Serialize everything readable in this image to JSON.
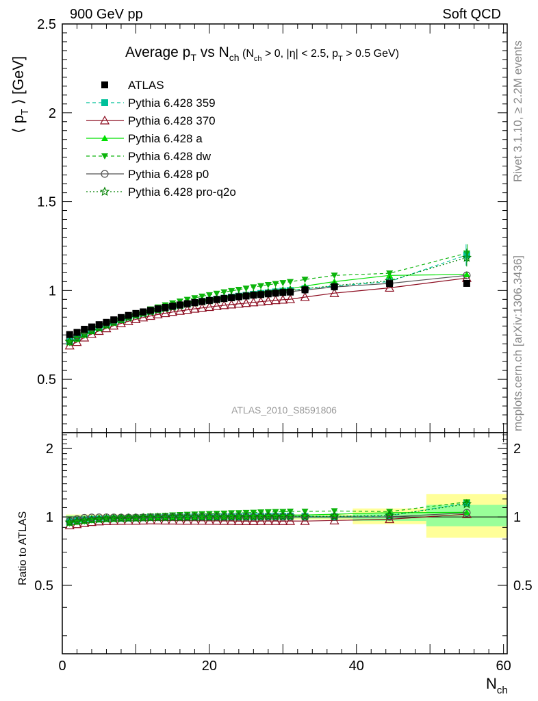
{
  "header": {
    "left": "900 GeV pp",
    "right": "Soft QCD"
  },
  "side_labels": {
    "rivet": "Rivet 3.1.10, ≥ 2.2M events",
    "source": "mcplots.cern.ch [arXiv:1306.3436]"
  },
  "chart_data": {
    "type": "scatter",
    "title_main": "Average p",
    "title_main_sub": "T",
    "title_vs": " vs N",
    "title_vs_sub": "ch",
    "title_cuts_1": " (N",
    "title_cuts_1_sub": "ch",
    "title_cuts_2": " > 0, |η| < 2.5, p",
    "title_cuts_2_sub": "T",
    "title_cuts_3": " > 0.5 GeV)",
    "analysis_label": "ATLAS_2010_S8591806",
    "ylabel_pre": "⟨ p",
    "ylabel_sub": "T",
    "ylabel_post": " ⟩ [GeV]",
    "ratio_ylabel": "Ratio to ATLAS",
    "xlabel": "N",
    "xlabel_sub": "ch",
    "xlim": [
      0,
      60.5
    ],
    "ylim": [
      0.2,
      2.5
    ],
    "ratio_ylim": [
      0.25,
      2.35
    ],
    "x_ticks": [
      "0",
      "20",
      "40",
      "60"
    ],
    "y_ticks": [
      "0.5",
      "1",
      "1.5",
      "2",
      "2.5"
    ],
    "ratio_y_ticks": [
      "0.5",
      "1",
      "2"
    ],
    "x": [
      1,
      2,
      3,
      4,
      5,
      6,
      7,
      8,
      9,
      10,
      11,
      12,
      13,
      14,
      15,
      16,
      17,
      18,
      19,
      20,
      21,
      22,
      23,
      24,
      25,
      26,
      27,
      28,
      29,
      30,
      31,
      33,
      37,
      44.5,
      55
    ],
    "reference": {
      "name": "ATLAS",
      "color": "#000000",
      "values": [
        0.752,
        0.764,
        0.782,
        0.795,
        0.808,
        0.821,
        0.835,
        0.848,
        0.86,
        0.871,
        0.88,
        0.888,
        0.897,
        0.905,
        0.912,
        0.919,
        0.926,
        0.932,
        0.938,
        0.944,
        0.949,
        0.955,
        0.959,
        0.965,
        0.969,
        0.974,
        0.977,
        0.981,
        0.985,
        0.989,
        0.991,
        1.004,
        1.021,
        1.039,
        1.04
      ]
    },
    "series": [
      {
        "name": "Pythia 6.428 359",
        "color": "#00c09a",
        "dash": "5,4",
        "marker": "square",
        "values": [
          0.717,
          0.734,
          0.757,
          0.775,
          0.791,
          0.807,
          0.822,
          0.836,
          0.85,
          0.862,
          0.873,
          0.883,
          0.892,
          0.901,
          0.91,
          0.917,
          0.925,
          0.932,
          0.939,
          0.945,
          0.951,
          0.957,
          0.963,
          0.968,
          0.973,
          0.978,
          0.983,
          0.987,
          0.992,
          0.996,
          1.0,
          1.01,
          1.025,
          1.05,
          1.2
        ]
      },
      {
        "name": "Pythia 6.428 370",
        "color": "#8b0a1e",
        "dash": "",
        "marker": "triangle-open",
        "values": [
          0.69,
          0.71,
          0.735,
          0.755,
          0.772,
          0.787,
          0.802,
          0.815,
          0.827,
          0.838,
          0.848,
          0.857,
          0.865,
          0.872,
          0.879,
          0.885,
          0.891,
          0.897,
          0.902,
          0.907,
          0.912,
          0.917,
          0.921,
          0.925,
          0.929,
          0.933,
          0.937,
          0.941,
          0.945,
          0.948,
          0.951,
          0.963,
          0.985,
          1.015,
          1.07
        ]
      },
      {
        "name": "Pythia 6.428 a",
        "color": "#00e000",
        "dash": "",
        "marker": "triangle",
        "values": [
          0.708,
          0.727,
          0.75,
          0.77,
          0.787,
          0.803,
          0.818,
          0.833,
          0.847,
          0.859,
          0.871,
          0.881,
          0.891,
          0.901,
          0.91,
          0.918,
          0.926,
          0.933,
          0.941,
          0.948,
          0.954,
          0.961,
          0.967,
          0.973,
          0.978,
          0.984,
          0.989,
          0.995,
          1.0,
          1.005,
          1.01,
          1.025,
          1.05,
          1.085,
          1.09
        ]
      },
      {
        "name": "Pythia 6.428 dw",
        "color": "#0cb40c",
        "dash": "5,4",
        "marker": "triangle-down",
        "values": [
          0.705,
          0.725,
          0.748,
          0.769,
          0.788,
          0.806,
          0.823,
          0.839,
          0.854,
          0.868,
          0.882,
          0.895,
          0.906,
          0.918,
          0.929,
          0.939,
          0.949,
          0.958,
          0.967,
          0.975,
          0.983,
          0.991,
          0.998,
          1.005,
          1.012,
          1.019,
          1.026,
          1.032,
          1.038,
          1.043,
          1.049,
          1.062,
          1.085,
          1.097,
          1.21
        ]
      },
      {
        "name": "Pythia 6.428 p0",
        "color": "#505050",
        "dash": "",
        "marker": "circle-open",
        "values": [
          0.72,
          0.748,
          0.775,
          0.791,
          0.805,
          0.818,
          0.831,
          0.843,
          0.855,
          0.866,
          0.876,
          0.885,
          0.894,
          0.903,
          0.911,
          0.918,
          0.925,
          0.932,
          0.938,
          0.944,
          0.95,
          0.955,
          0.96,
          0.965,
          0.97,
          0.974,
          0.978,
          0.982,
          0.986,
          0.99,
          0.993,
          1.003,
          1.02,
          1.04,
          1.085
        ]
      },
      {
        "name": "Pythia 6.428 pro-q2o",
        "color": "#008000",
        "dash": "2,3",
        "marker": "star",
        "values": [
          0.712,
          0.731,
          0.754,
          0.773,
          0.79,
          0.806,
          0.821,
          0.835,
          0.848,
          0.86,
          0.871,
          0.881,
          0.891,
          0.9,
          0.908,
          0.916,
          0.924,
          0.931,
          0.938,
          0.944,
          0.95,
          0.956,
          0.962,
          0.967,
          0.972,
          0.977,
          0.982,
          0.987,
          0.991,
          0.995,
          0.999,
          1.01,
          1.028,
          1.055,
          1.185
        ]
      }
    ],
    "ratio_bands": [
      {
        "x_range": [
          0.5,
          39.5
        ],
        "inner": [
          0.985,
          1.015
        ],
        "outer": [
          0.975,
          1.025
        ]
      },
      {
        "x_range": [
          39.5,
          49.5
        ],
        "inner": [
          0.96,
          1.04
        ],
        "outer": [
          0.93,
          1.09
        ]
      },
      {
        "x_range": [
          49.5,
          60.5
        ],
        "inner": [
          0.91,
          1.13
        ],
        "outer": [
          0.81,
          1.26
        ]
      }
    ],
    "band_colors": {
      "inner": "#99ff99",
      "outer": "#ffff99"
    }
  }
}
